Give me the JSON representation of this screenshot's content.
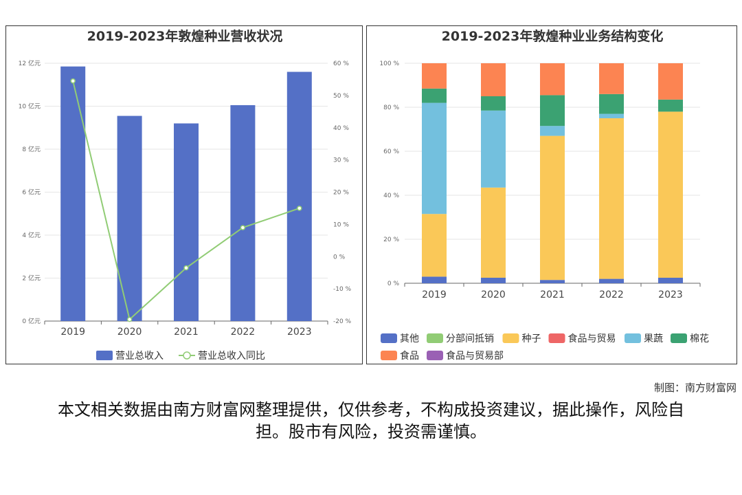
{
  "charts": [
    {
      "title": "2019-2023年敦煌种业营收状况",
      "type": "bar+line",
      "categories": [
        "2019",
        "2020",
        "2021",
        "2022",
        "2023"
      ],
      "left_axis": {
        "ticks": [
          "0 亿元",
          "2 亿元",
          "4 亿元",
          "6 亿元",
          "8 亿元",
          "10 亿元",
          "12 亿元"
        ],
        "range": [
          0,
          12
        ]
      },
      "right_axis": {
        "ticks": [
          "-20 %",
          "-10 %",
          "0 %",
          "10 %",
          "20 %",
          "30 %",
          "40 %",
          "50 %",
          "60 %"
        ],
        "range": [
          -20,
          60
        ]
      },
      "series": [
        {
          "name": "营业总收入",
          "kind": "bar",
          "axis": "left",
          "color": "#5470c6",
          "values": [
            11.85,
            9.55,
            9.2,
            10.05,
            11.6
          ]
        },
        {
          "name": "营业总收入同比",
          "kind": "line",
          "axis": "right",
          "color": "#91cc75",
          "values": [
            54.5,
            -19.5,
            -3.5,
            9.0,
            15.0
          ]
        }
      ]
    },
    {
      "title": "2019-2023年敦煌种业业务结构变化",
      "type": "stacked-bar",
      "categories": [
        "2019",
        "2020",
        "2021",
        "2022",
        "2023"
      ],
      "y_axis": {
        "ticks": [
          "0 %",
          "20 %",
          "40 %",
          "60 %",
          "80 %",
          "100 %"
        ],
        "range": [
          0,
          100
        ]
      },
      "series": [
        {
          "name": "其他",
          "color": "#5470c6",
          "values": [
            3,
            2.5,
            1.5,
            2,
            2.5
          ]
        },
        {
          "name": "分部间抵销",
          "color": "#91cc75",
          "values": [
            0,
            0,
            0,
            0,
            0
          ]
        },
        {
          "name": "种子",
          "color": "#fac858",
          "values": [
            28.5,
            41,
            65.5,
            73,
            75.5
          ]
        },
        {
          "name": "食品与贸易",
          "color": "#ee6666",
          "values": [
            0,
            0,
            0,
            0,
            0
          ]
        },
        {
          "name": "果蔬",
          "color": "#73c0de",
          "values": [
            50.5,
            35,
            4.5,
            2,
            0
          ]
        },
        {
          "name": "棉花",
          "color": "#3ba272",
          "values": [
            6.5,
            6.5,
            14,
            9,
            5.5
          ]
        },
        {
          "name": "食品",
          "color": "#fc8452",
          "values": [
            11.5,
            15,
            14.5,
            14,
            16.5
          ]
        },
        {
          "name": "食品与贸易部",
          "color": "#9a60b4",
          "values": [
            0,
            0,
            0,
            0,
            0
          ]
        }
      ]
    }
  ],
  "chart_data": [
    {
      "type": "bar",
      "title": "2019-2023年敦煌种业营收状况",
      "categories": [
        "2019",
        "2020",
        "2021",
        "2022",
        "2023"
      ],
      "series": [
        {
          "name": "营业总收入",
          "values": [
            11.85,
            9.55,
            9.2,
            10.05,
            11.6
          ]
        },
        {
          "name": "营业总收入同比",
          "values": [
            54.5,
            -19.5,
            -3.5,
            9.0,
            15.0
          ]
        }
      ],
      "ylim": [
        0,
        12
      ],
      "y2lim": [
        -20,
        60
      ]
    },
    {
      "type": "bar",
      "stacked": true,
      "title": "2019-2023年敦煌种业业务结构变化",
      "categories": [
        "2019",
        "2020",
        "2021",
        "2022",
        "2023"
      ],
      "series": [
        {
          "name": "其他",
          "values": [
            3,
            2.5,
            1.5,
            2,
            2.5
          ]
        },
        {
          "name": "分部间抵销",
          "values": [
            0,
            0,
            0,
            0,
            0
          ]
        },
        {
          "name": "种子",
          "values": [
            28.5,
            41,
            65.5,
            73,
            75.5
          ]
        },
        {
          "name": "食品与贸易",
          "values": [
            0,
            0,
            0,
            0,
            0
          ]
        },
        {
          "name": "果蔬",
          "values": [
            50.5,
            35,
            4.5,
            2,
            0
          ]
        },
        {
          "name": "棉花",
          "values": [
            6.5,
            6.5,
            14,
            9,
            5.5
          ]
        },
        {
          "name": "食品",
          "values": [
            11.5,
            15,
            14.5,
            14,
            16.5
          ]
        },
        {
          "name": "食品与贸易部",
          "values": [
            0,
            0,
            0,
            0,
            0
          ]
        }
      ],
      "ylim": [
        0,
        100
      ]
    }
  ],
  "credit": "制图：南方财富网",
  "footnote": "本文相关数据由南方财富网整理提供，仅供参考，不构成投资建议，据此操作，风险自担。股市有风险，投资需谨慎。"
}
